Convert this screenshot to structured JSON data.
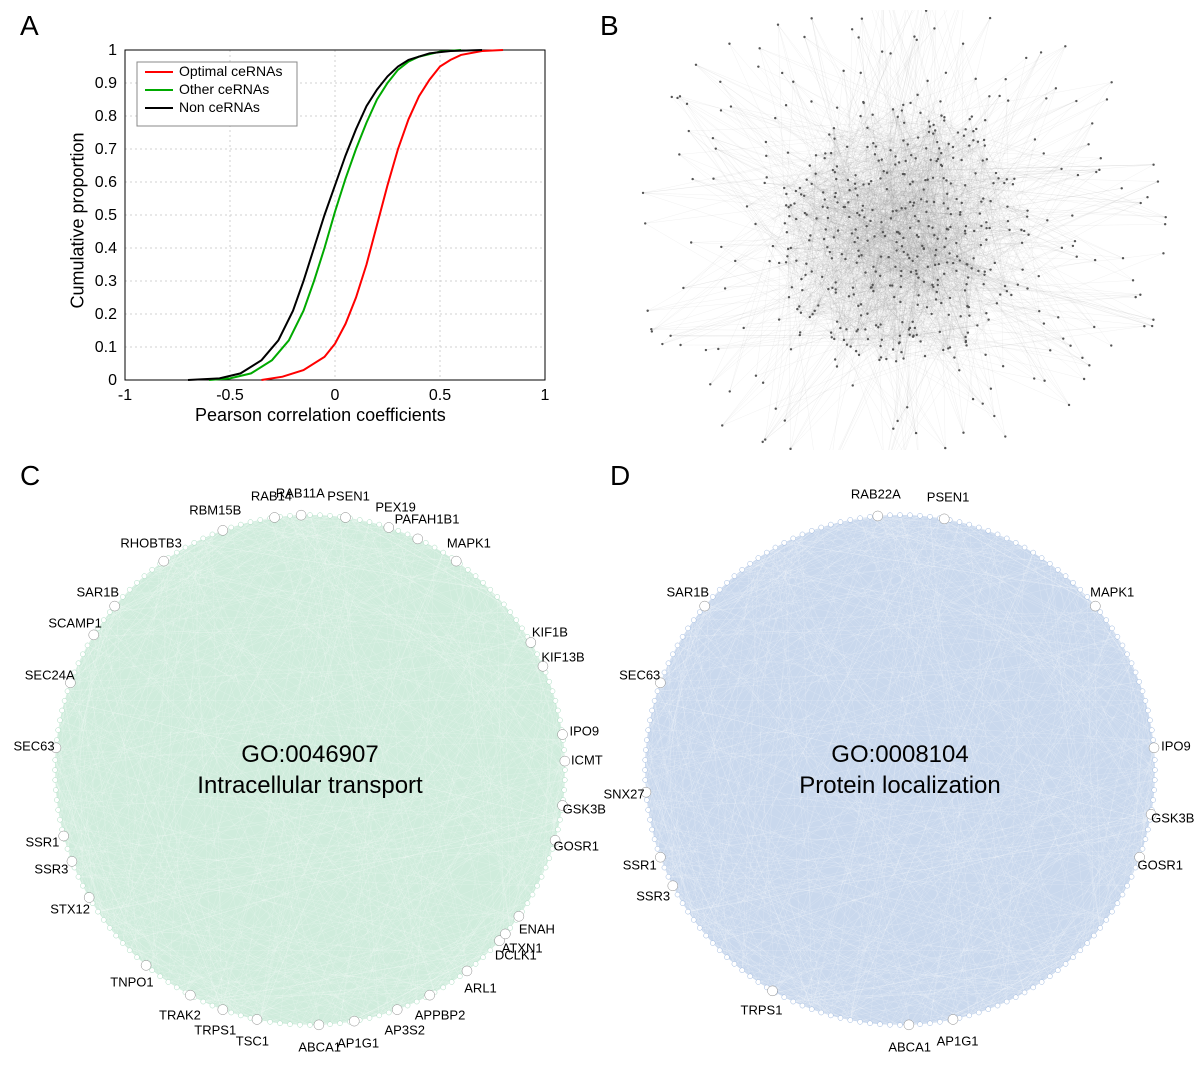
{
  "panelA": {
    "label": "A",
    "label_fontsize": 28,
    "xlabel": "Pearson correlation coefficients",
    "ylabel": "Cumulative proportion",
    "label_fontsize_axis": 18,
    "tick_fontsize": 16,
    "xlim": [
      -1,
      1
    ],
    "ylim": [
      0,
      1
    ],
    "xticks": [
      -1,
      -0.5,
      0,
      0.5,
      1
    ],
    "yticks": [
      0,
      0.1,
      0.2,
      0.3,
      0.4,
      0.5,
      0.6,
      0.7,
      0.8,
      0.9,
      1
    ],
    "grid_color": "#d0d0d0",
    "grid_dash": "2,3",
    "background_color": "#ffffff",
    "axis_color": "#000000",
    "line_width": 2,
    "series": [
      {
        "name": "Optimal ceRNAs",
        "color": "#ff0000",
        "points": [
          [
            -0.35,
            0.0
          ],
          [
            -0.25,
            0.01
          ],
          [
            -0.15,
            0.03
          ],
          [
            -0.05,
            0.07
          ],
          [
            0.0,
            0.11
          ],
          [
            0.05,
            0.17
          ],
          [
            0.1,
            0.25
          ],
          [
            0.15,
            0.35
          ],
          [
            0.2,
            0.47
          ],
          [
            0.25,
            0.59
          ],
          [
            0.3,
            0.7
          ],
          [
            0.35,
            0.79
          ],
          [
            0.4,
            0.86
          ],
          [
            0.45,
            0.91
          ],
          [
            0.5,
            0.95
          ],
          [
            0.55,
            0.97
          ],
          [
            0.6,
            0.985
          ],
          [
            0.7,
            0.997
          ],
          [
            0.8,
            1.0
          ]
        ]
      },
      {
        "name": "Other ceRNAs",
        "color": "#00aa00",
        "points": [
          [
            -0.6,
            0.0
          ],
          [
            -0.5,
            0.005
          ],
          [
            -0.4,
            0.02
          ],
          [
            -0.3,
            0.06
          ],
          [
            -0.22,
            0.12
          ],
          [
            -0.15,
            0.21
          ],
          [
            -0.1,
            0.3
          ],
          [
            -0.05,
            0.4
          ],
          [
            0.0,
            0.51
          ],
          [
            0.05,
            0.61
          ],
          [
            0.1,
            0.7
          ],
          [
            0.15,
            0.78
          ],
          [
            0.2,
            0.85
          ],
          [
            0.25,
            0.9
          ],
          [
            0.3,
            0.94
          ],
          [
            0.35,
            0.965
          ],
          [
            0.4,
            0.98
          ],
          [
            0.5,
            0.995
          ],
          [
            0.6,
            1.0
          ]
        ]
      },
      {
        "name": "Non ceRNAs",
        "color": "#000000",
        "points": [
          [
            -0.7,
            0.0
          ],
          [
            -0.55,
            0.005
          ],
          [
            -0.45,
            0.02
          ],
          [
            -0.35,
            0.06
          ],
          [
            -0.27,
            0.12
          ],
          [
            -0.2,
            0.21
          ],
          [
            -0.15,
            0.3
          ],
          [
            -0.1,
            0.4
          ],
          [
            -0.05,
            0.5
          ],
          [
            0.0,
            0.59
          ],
          [
            0.05,
            0.68
          ],
          [
            0.1,
            0.76
          ],
          [
            0.15,
            0.83
          ],
          [
            0.2,
            0.88
          ],
          [
            0.25,
            0.92
          ],
          [
            0.3,
            0.95
          ],
          [
            0.35,
            0.97
          ],
          [
            0.45,
            0.99
          ],
          [
            0.55,
            0.997
          ],
          [
            0.7,
            1.0
          ]
        ]
      }
    ],
    "legend": {
      "position": "top-left",
      "border_color": "#888888",
      "fontsize": 14
    }
  },
  "panelB": {
    "label": "B",
    "type": "network-hairball",
    "node_color": "#555555",
    "edge_color": "#888888",
    "edge_opacity": 0.15,
    "center_density": 0.9,
    "n_core_nodes": 400,
    "n_periphery_nodes": 180,
    "core_radius": 130,
    "full_radius": 230
  },
  "panelC": {
    "label": "C",
    "type": "circle-network",
    "fill_color": "#a8dcc0",
    "edge_opacity": 0.25,
    "radius": 255,
    "center_text_line1": "GO:0046907",
    "center_text_line2": "Intracellular transport",
    "center_fontsize": 24,
    "gene_fontsize": 13,
    "genes": [
      {
        "label": "PSEN1",
        "angle": 82
      },
      {
        "label": "RAB11A",
        "angle": 92
      },
      {
        "label": "RAB14",
        "angle": 98
      },
      {
        "label": "PEX19",
        "angle": 72
      },
      {
        "label": "PAFAH1B1",
        "angle": 65
      },
      {
        "label": "MAPK1",
        "angle": 55
      },
      {
        "label": "RBM15B",
        "angle": 110
      },
      {
        "label": "RHOBTB3",
        "angle": 125
      },
      {
        "label": "SAR1B",
        "angle": 140
      },
      {
        "label": "SCAMP1",
        "angle": 148
      },
      {
        "label": "SEC24A",
        "angle": 160
      },
      {
        "label": "SEC63",
        "angle": 175
      },
      {
        "label": "KIF1B",
        "angle": 30
      },
      {
        "label": "KIF13B",
        "angle": 24
      },
      {
        "label": "IPO9",
        "angle": 8
      },
      {
        "label": "ICMT",
        "angle": 2
      },
      {
        "label": "GSK3B",
        "angle": -8
      },
      {
        "label": "GOSR1",
        "angle": -16
      },
      {
        "label": "SSR1",
        "angle": 195
      },
      {
        "label": "SSR3",
        "angle": 201
      },
      {
        "label": "STX12",
        "angle": 210
      },
      {
        "label": "ENAH",
        "angle": -35
      },
      {
        "label": "DCLK1",
        "angle": -42
      },
      {
        "label": "TNPO1",
        "angle": 230
      },
      {
        "label": "TRAK2",
        "angle": 242
      },
      {
        "label": "TRPS1",
        "angle": 250
      },
      {
        "label": "TSC1",
        "angle": 258
      },
      {
        "label": "ABCA1",
        "angle": 272
      },
      {
        "label": "AP1G1",
        "angle": 280
      },
      {
        "label": "AP3S2",
        "angle": 290
      },
      {
        "label": "APPBP2",
        "angle": 298
      },
      {
        "label": "ARL1",
        "angle": 308
      },
      {
        "label": "ATXN1",
        "angle": 320
      }
    ]
  },
  "panelD": {
    "label": "D",
    "type": "circle-network",
    "fill_color": "#9db8df",
    "edge_opacity": 0.25,
    "radius": 255,
    "center_text_line1": "GO:0008104",
    "center_text_line2": "Protein localization",
    "center_fontsize": 24,
    "gene_fontsize": 13,
    "genes": [
      {
        "label": "PSEN1",
        "angle": 80
      },
      {
        "label": "RAB22A",
        "angle": 95
      },
      {
        "label": "MAPK1",
        "angle": 40
      },
      {
        "label": "SAR1B",
        "angle": 140
      },
      {
        "label": "SEC63",
        "angle": 160
      },
      {
        "label": "IPO9",
        "angle": 5
      },
      {
        "label": "GSK3B",
        "angle": -10
      },
      {
        "label": "GOSR1",
        "angle": -20
      },
      {
        "label": "SNX27",
        "angle": 185
      },
      {
        "label": "SSR1",
        "angle": 200
      },
      {
        "label": "SSR3",
        "angle": 207
      },
      {
        "label": "TRPS1",
        "angle": 240
      },
      {
        "label": "ABCA1",
        "angle": 272
      },
      {
        "label": "AP1G1",
        "angle": 282
      }
    ]
  }
}
